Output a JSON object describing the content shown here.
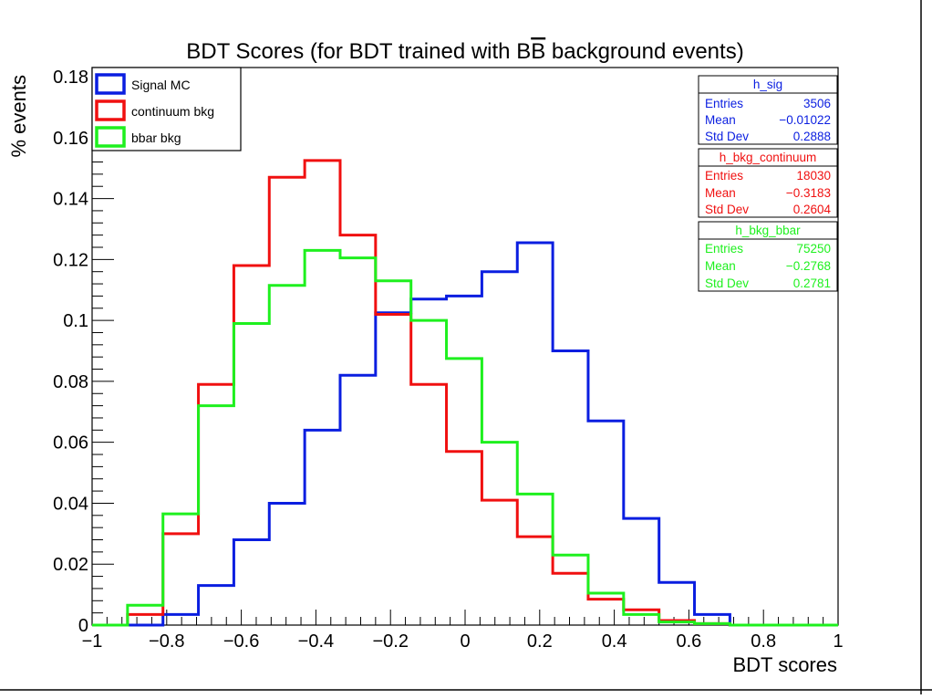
{
  "chart_data": {
    "type": "histogram",
    "title": "BDT Scores (for BDT trained with B̅B background events)",
    "title_parts": {
      "before": "BDT Scores (for BDT trained with B",
      "bar_char": "B",
      "after": " background events)"
    },
    "xlabel": "BDT scores",
    "ylabel": "% events",
    "xlim": [
      -1,
      1
    ],
    "ylim": [
      0,
      0.183
    ],
    "x_ticks": [
      {
        "value": -1,
        "label": "−1"
      },
      {
        "value": -0.8,
        "label": "−0.8"
      },
      {
        "value": -0.6,
        "label": "−0.6"
      },
      {
        "value": -0.4,
        "label": "−0.4"
      },
      {
        "value": -0.2,
        "label": "−0.2"
      },
      {
        "value": 0,
        "label": "0"
      },
      {
        "value": 0.2,
        "label": "0.2"
      },
      {
        "value": 0.4,
        "label": "0.4"
      },
      {
        "value": 0.6,
        "label": "0.6"
      },
      {
        "value": 0.8,
        "label": "0.8"
      },
      {
        "value": 1,
        "label": "1"
      }
    ],
    "y_ticks": [
      {
        "value": 0,
        "label": "0"
      },
      {
        "value": 0.02,
        "label": "0.02"
      },
      {
        "value": 0.04,
        "label": "0.04"
      },
      {
        "value": 0.06,
        "label": "0.06"
      },
      {
        "value": 0.08,
        "label": "0.08"
      },
      {
        "value": 0.1,
        "label": "0.1"
      },
      {
        "value": 0.12,
        "label": "0.12"
      },
      {
        "value": 0.14,
        "label": "0.14"
      },
      {
        "value": 0.16,
        "label": "0.16"
      },
      {
        "value": 0.18,
        "label": "0.18"
      }
    ],
    "bin_edges": [
      -1.0,
      -0.905,
      -0.81,
      -0.715,
      -0.62,
      -0.525,
      -0.43,
      -0.335,
      -0.24,
      -0.145,
      -0.05,
      0.045,
      0.14,
      0.235,
      0.33,
      0.425,
      0.52,
      0.615,
      0.71,
      0.805,
      0.9,
      1.0
    ],
    "series": [
      {
        "name": "Signal MC",
        "color": "#0a1ee0",
        "values": [
          0.0,
          0.0,
          0.0035,
          0.013,
          0.028,
          0.04,
          0.064,
          0.082,
          0.1025,
          0.107,
          0.108,
          0.116,
          0.1255,
          0.09,
          0.067,
          0.035,
          0.014,
          0.0035,
          0.0,
          0.0,
          0.0
        ]
      },
      {
        "name": "continuum bkg",
        "color": "#f01010",
        "values": [
          0.0,
          0.0035,
          0.03,
          0.079,
          0.118,
          0.147,
          0.1525,
          0.128,
          0.102,
          0.079,
          0.057,
          0.041,
          0.029,
          0.017,
          0.0085,
          0.005,
          0.0015,
          0.0005,
          0.0,
          0.0,
          0.0
        ]
      },
      {
        "name": "bbar bkg",
        "color": "#1ef01e",
        "values": [
          0.0,
          0.0065,
          0.0365,
          0.072,
          0.099,
          0.1115,
          0.123,
          0.1205,
          0.113,
          0.1,
          0.0875,
          0.06,
          0.043,
          0.023,
          0.0105,
          0.0035,
          0.001,
          0.0005,
          0.0,
          0.0,
          0.0
        ]
      }
    ],
    "legend": {
      "placement": "top-left",
      "entries": [
        {
          "label": "Signal MC",
          "color": "#0a1ee0"
        },
        {
          "label": "continuum bkg",
          "color": "#f01010"
        },
        {
          "label": "bbar bkg",
          "color": "#1ef01e"
        }
      ]
    },
    "stat_boxes": [
      {
        "name": "h_sig",
        "color": "#0a1ee0",
        "rows": [
          {
            "label": "Entries",
            "value": "3506"
          },
          {
            "label": "Mean",
            "value": "−0.01022"
          },
          {
            "label": "Std Dev",
            "value": "0.2888"
          }
        ]
      },
      {
        "name": "h_bkg_continuum",
        "color": "#f01010",
        "rows": [
          {
            "label": "Entries",
            "value": "18030"
          },
          {
            "label": "Mean",
            "value": "−0.3183"
          },
          {
            "label": "Std Dev",
            "value": "0.2604"
          }
        ]
      },
      {
        "name": "h_bkg_bbar",
        "color": "#1ef01e",
        "rows": [
          {
            "label": "Entries",
            "value": "75250"
          },
          {
            "label": "Mean",
            "value": "−0.2768"
          },
          {
            "label": "Std Dev",
            "value": "0.2781"
          }
        ]
      }
    ]
  }
}
